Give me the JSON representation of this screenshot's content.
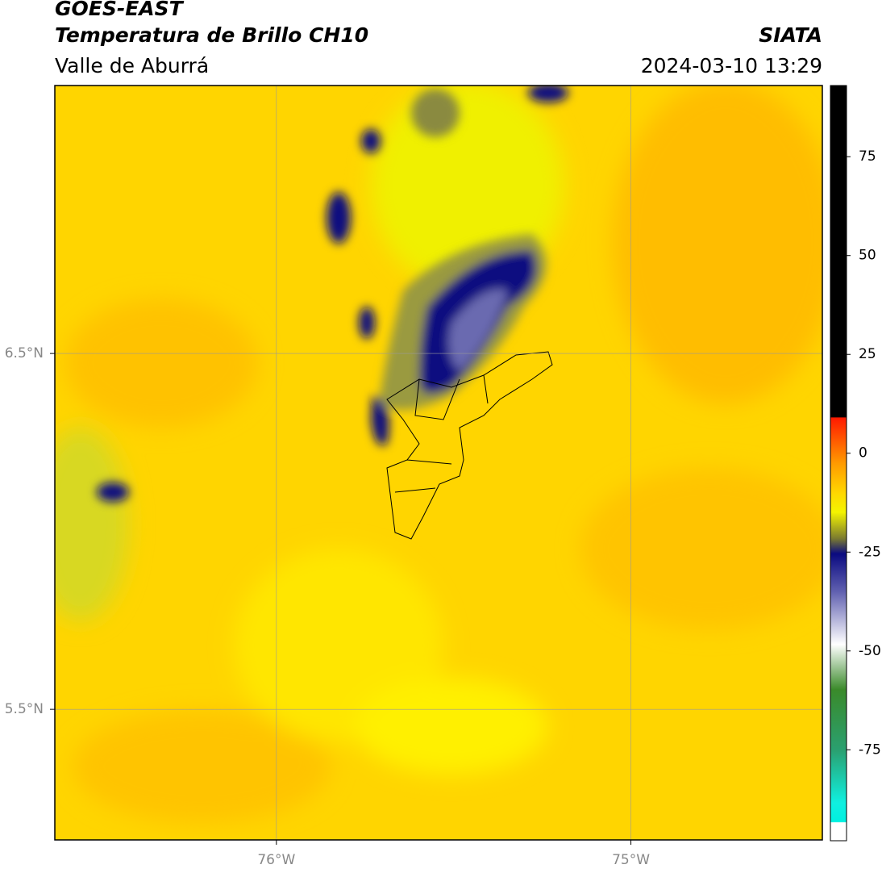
{
  "header": {
    "title": "GOES-EAST",
    "subtitle": "Temperatura de Brillo CH10",
    "source": "SIATA",
    "region": "Valle de Aburrá",
    "datetime": "2024-03-10 13:29"
  },
  "map": {
    "xlim": [
      -76.625,
      -74.46
    ],
    "ylim": [
      5.133,
      7.253
    ],
    "xticks": [
      {
        "value": -76,
        "label": "76°W"
      },
      {
        "value": -75,
        "label": "75°W"
      }
    ],
    "yticks": [
      {
        "value": 6.5,
        "label": "6.5°N"
      },
      {
        "value": 5.5,
        "label": "5.5°N"
      }
    ],
    "grid": true
  },
  "colorbar": {
    "lim": [
      -98,
      93
    ],
    "ticks": [
      75,
      50,
      25,
      0,
      -25,
      -50,
      -75
    ]
  }
}
